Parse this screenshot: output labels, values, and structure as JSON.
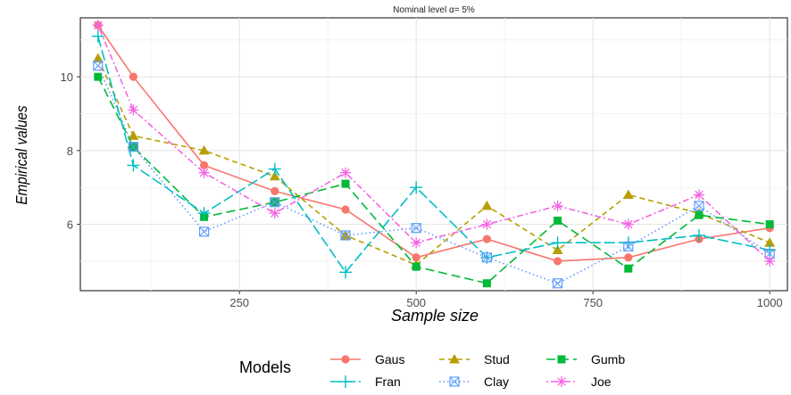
{
  "chart_data": {
    "type": "line",
    "title": "Nominal level α= 5%",
    "xlabel": "Sample size",
    "ylabel": "Empirical values",
    "xlim": [
      25,
      1025
    ],
    "ylim": [
      4.2,
      11.6
    ],
    "x_ticks": [
      250,
      500,
      750,
      1000
    ],
    "y_ticks": [
      6,
      8,
      10
    ],
    "grid": true,
    "legend_title": "Models",
    "legend_position": "bottom",
    "x": [
      50,
      100,
      200,
      300,
      400,
      500,
      600,
      700,
      800,
      900,
      1000
    ],
    "series": [
      {
        "name": "Gaus",
        "color": "#F8766D",
        "marker": "circle",
        "dash": "solid",
        "values": [
          11.4,
          10.0,
          7.6,
          6.9,
          6.4,
          5.1,
          5.6,
          5.0,
          5.1,
          5.6,
          5.9
        ]
      },
      {
        "name": "Stud",
        "color": "#B79F00",
        "marker": "triangle",
        "dash": "dashed",
        "values": [
          10.5,
          8.4,
          8.0,
          7.3,
          5.7,
          4.9,
          6.5,
          5.3,
          6.8,
          6.3,
          5.5
        ]
      },
      {
        "name": "Gumb",
        "color": "#00BA38",
        "marker": "square",
        "dash": "longdash",
        "values": [
          10.0,
          8.1,
          6.2,
          6.6,
          7.1,
          4.85,
          4.4,
          6.1,
          4.8,
          6.25,
          6.0
        ]
      },
      {
        "name": "Fran",
        "color": "#00BFC4",
        "marker": "plus",
        "dash": "longdash2",
        "values": [
          11.1,
          7.6,
          6.3,
          7.5,
          4.7,
          7.0,
          5.1,
          5.5,
          5.5,
          5.7,
          5.3
        ]
      },
      {
        "name": "Clay",
        "color": "#619CFF",
        "marker": "boxx",
        "dash": "dotted",
        "values": [
          10.3,
          8.1,
          5.8,
          6.6,
          5.7,
          5.9,
          5.1,
          4.4,
          5.4,
          6.5,
          5.2
        ]
      },
      {
        "name": "Joe",
        "color": "#F564E3",
        "marker": "asterisk",
        "dash": "dotdash",
        "values": [
          11.4,
          9.1,
          7.4,
          6.3,
          7.4,
          5.5,
          6.0,
          6.5,
          6.0,
          6.8,
          5.0
        ]
      }
    ]
  }
}
